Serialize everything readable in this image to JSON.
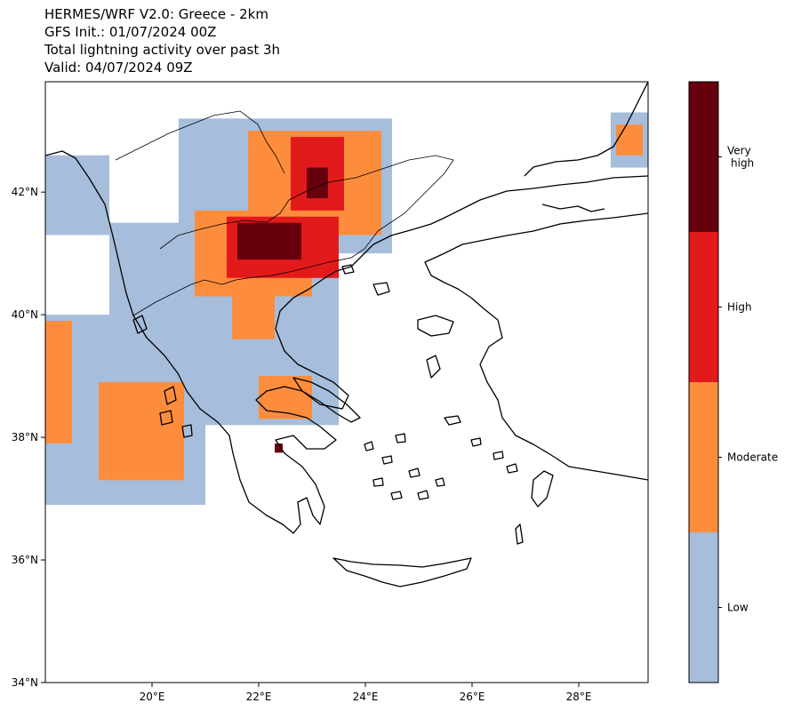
{
  "title_lines": [
    "HERMES/WRF V2.0: Greece - 2km",
    "GFS Init.: 01/07/2024 00Z",
    "Total lightning activity over past 3h",
    "Valid: 04/07/2024 09Z"
  ],
  "map": {
    "lon_range": [
      18.0,
      29.3
    ],
    "lat_range": [
      34.0,
      43.8
    ],
    "lon_ticks": [
      {
        "value": 20,
        "label": "20°E"
      },
      {
        "value": 22,
        "label": "22°E"
      },
      {
        "value": 24,
        "label": "24°E"
      },
      {
        "value": 26,
        "label": "26°E"
      },
      {
        "value": 28,
        "label": "28°E"
      }
    ],
    "lat_ticks": [
      {
        "value": 34,
        "label": "34°N"
      },
      {
        "value": 36,
        "label": "36°N"
      },
      {
        "value": 38,
        "label": "38°N"
      },
      {
        "value": 40,
        "label": "40°N"
      },
      {
        "value": 42,
        "label": "42°N"
      }
    ]
  },
  "colorbar": {
    "levels": [
      {
        "label": "Low",
        "color": "#a6bddb"
      },
      {
        "label": "Moderate",
        "color": "#fd8d3c"
      },
      {
        "label": "High",
        "color": "#e31a1c"
      },
      {
        "label": "Very\nhigh",
        "color": "#67000d"
      }
    ]
  },
  "lightning_areas": [
    {
      "level": 1,
      "lon": [
        18.0,
        19.2
      ],
      "lat": [
        41.3,
        42.6
      ]
    },
    {
      "level": 1,
      "lon": [
        18.0,
        21.0
      ],
      "lat": [
        36.9,
        40.0
      ]
    },
    {
      "level": 1,
      "lon": [
        19.2,
        23.5
      ],
      "lat": [
        38.2,
        41.5
      ]
    },
    {
      "level": 1,
      "lon": [
        20.5,
        24.5
      ],
      "lat": [
        41.0,
        43.2
      ]
    },
    {
      "level": 1,
      "lon": [
        28.6,
        29.3
      ],
      "lat": [
        42.4,
        43.3
      ]
    },
    {
      "level": 2,
      "lon": [
        18.0,
        18.5
      ],
      "lat": [
        37.9,
        39.9
      ]
    },
    {
      "level": 2,
      "lon": [
        19.0,
        20.6
      ],
      "lat": [
        37.3,
        38.9
      ]
    },
    {
      "level": 2,
      "lon": [
        21.8,
        24.3
      ],
      "lat": [
        41.3,
        43.0
      ]
    },
    {
      "level": 2,
      "lon": [
        20.8,
        23.0
      ],
      "lat": [
        40.3,
        41.7
      ]
    },
    {
      "level": 2,
      "lon": [
        21.5,
        22.3
      ],
      "lat": [
        39.6,
        40.6
      ]
    },
    {
      "level": 2,
      "lon": [
        22.0,
        23.0
      ],
      "lat": [
        38.3,
        39.0
      ]
    },
    {
      "level": 2,
      "lon": [
        28.7,
        29.2
      ],
      "lat": [
        42.6,
        43.1
      ]
    },
    {
      "level": 3,
      "lon": [
        21.4,
        23.5
      ],
      "lat": [
        40.6,
        41.6
      ]
    },
    {
      "level": 3,
      "lon": [
        22.6,
        23.6
      ],
      "lat": [
        41.7,
        42.9
      ]
    },
    {
      "level": 4,
      "lon": [
        21.6,
        22.8
      ],
      "lat": [
        40.9,
        41.5
      ]
    },
    {
      "level": 4,
      "lon": [
        22.9,
        23.3
      ],
      "lat": [
        41.9,
        42.4
      ]
    },
    {
      "level": 4,
      "lon": [
        22.3,
        22.45
      ],
      "lat": [
        37.75,
        37.9
      ]
    }
  ]
}
